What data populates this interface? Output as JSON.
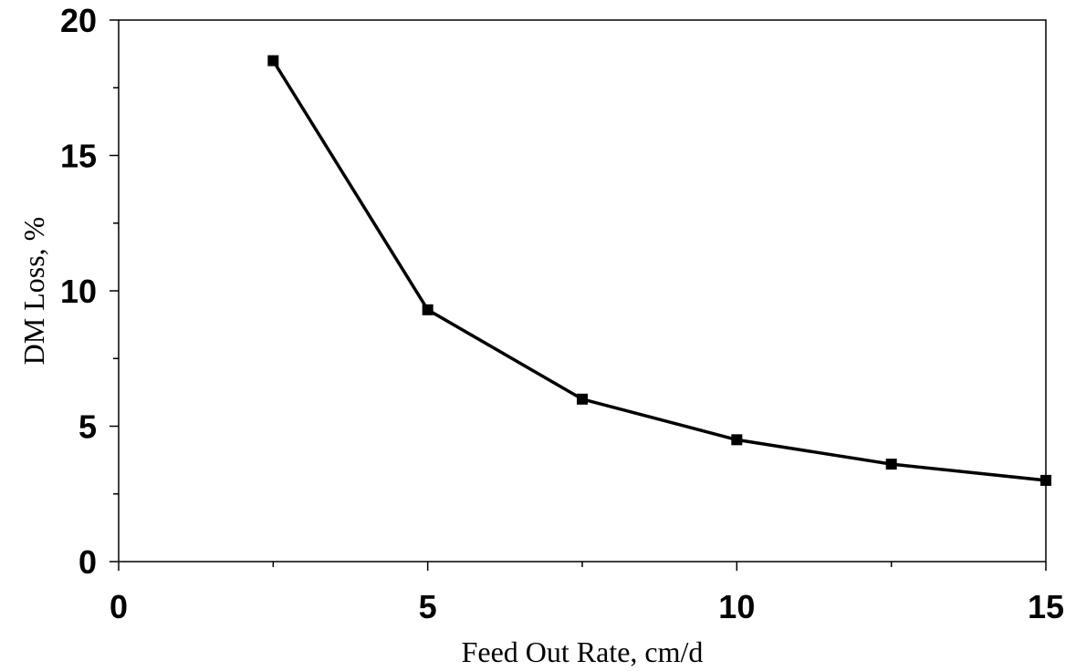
{
  "chart_data": {
    "type": "line",
    "title": "",
    "xlabel": "Feed Out Rate, cm/d",
    "ylabel": "DM Loss, %",
    "xlim": [
      0,
      15
    ],
    "ylim": [
      0,
      20
    ],
    "x_major_ticks": [
      0,
      5,
      10,
      15
    ],
    "x_minor_ticks": [
      2.5,
      7.5,
      12.5
    ],
    "y_major_ticks": [
      0,
      5,
      10,
      15,
      20
    ],
    "y_minor_ticks": [
      2.5,
      7.5,
      12.5,
      17.5
    ],
    "x_tick_labels": [
      "0",
      "5",
      "10",
      "15"
    ],
    "y_tick_labels": [
      "0",
      "5",
      "10",
      "15",
      "20"
    ],
    "grid": false,
    "legend": "none",
    "marker": "square",
    "line_color": "#000000",
    "series": [
      {
        "x": [
          2.5,
          5,
          7.5,
          10,
          12.5,
          15
        ],
        "y": [
          18.5,
          9.3,
          6.0,
          4.5,
          3.6,
          3.0
        ]
      }
    ]
  }
}
